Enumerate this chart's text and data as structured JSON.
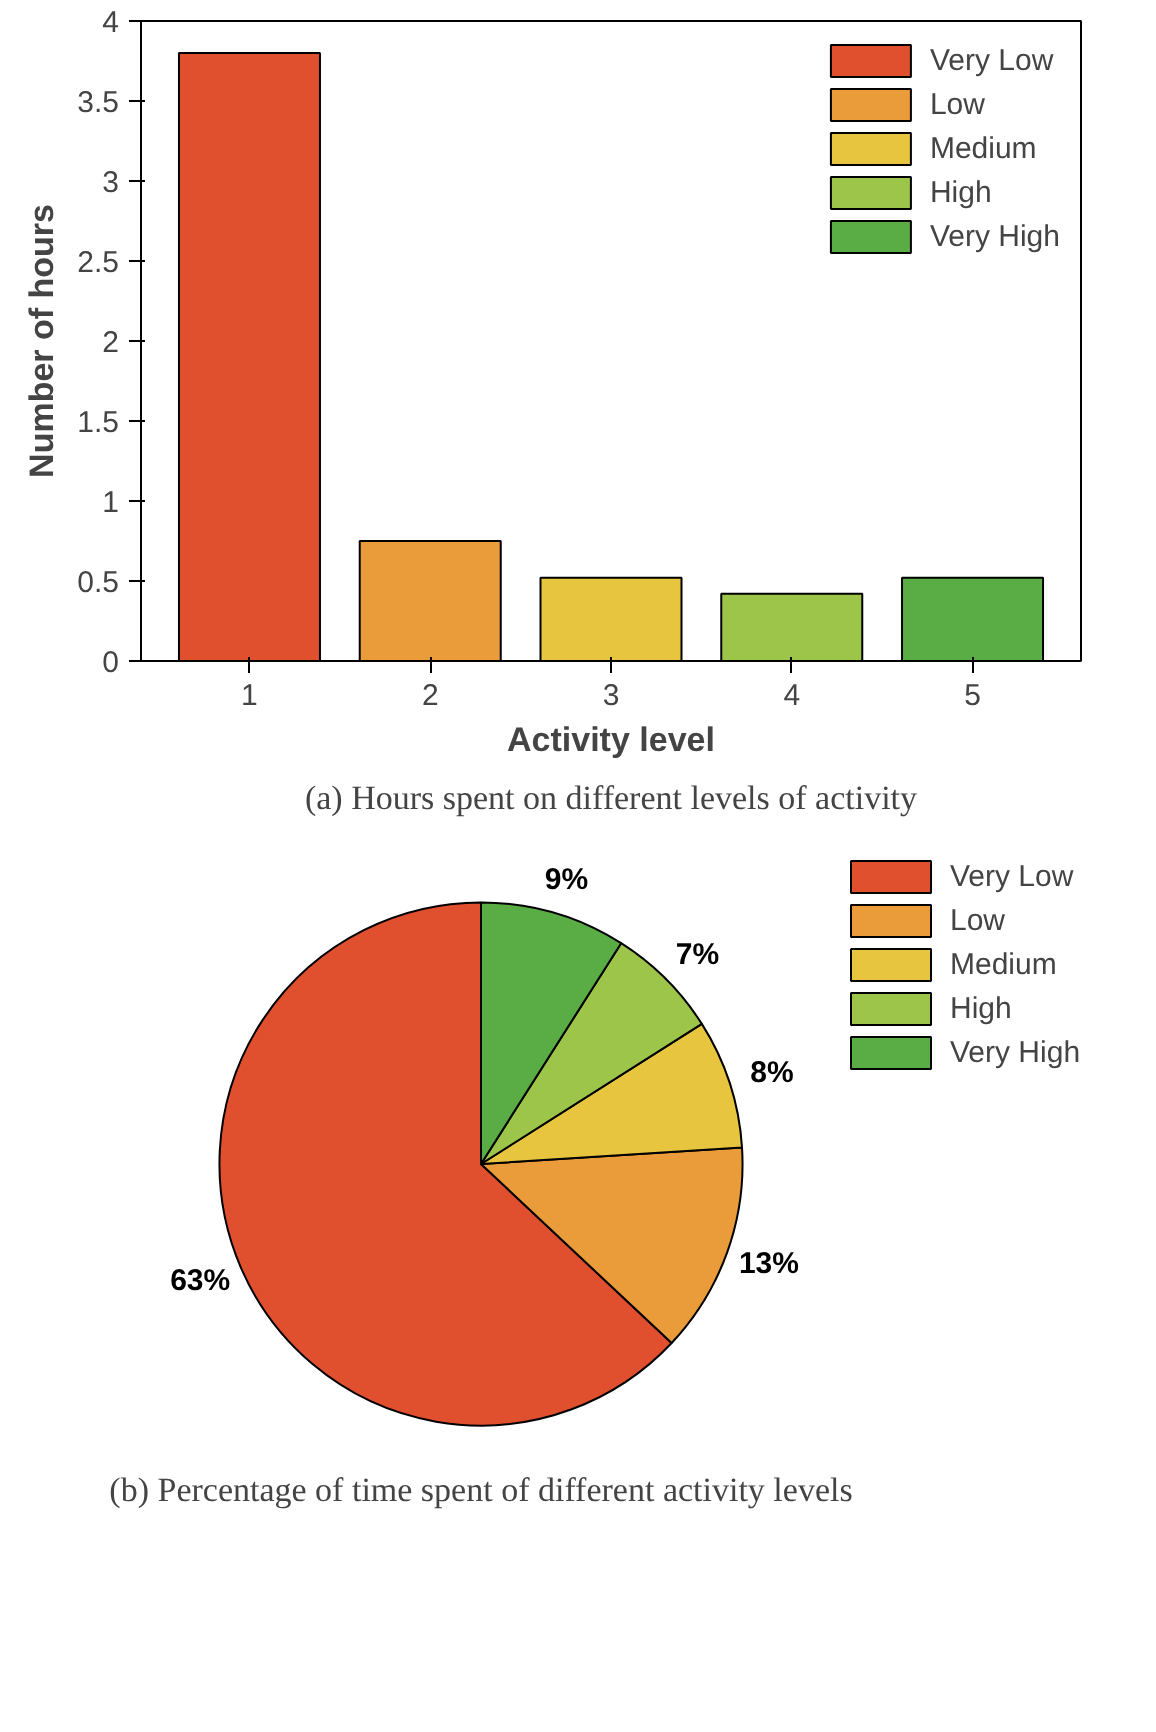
{
  "chart_data": [
    {
      "type": "bar",
      "xlabel": "Activity level",
      "ylabel": "Number of hours",
      "categories": [
        "1",
        "2",
        "3",
        "4",
        "5"
      ],
      "series": [
        {
          "name": "Very Low",
          "color": "#e0502e",
          "values": [
            3.8,
            null,
            null,
            null,
            null
          ]
        },
        {
          "name": "Low",
          "color": "#eb9c3a",
          "values": [
            null,
            0.75,
            null,
            null,
            null
          ]
        },
        {
          "name": "Medium",
          "color": "#e8c53e",
          "values": [
            null,
            null,
            0.52,
            null,
            null
          ]
        },
        {
          "name": "High",
          "color": "#9dc54a",
          "values": [
            null,
            null,
            null,
            0.42,
            null
          ]
        },
        {
          "name": "Very High",
          "color": "#5aad45",
          "values": [
            null,
            null,
            null,
            null,
            0.52
          ]
        }
      ],
      "ylim": [
        0,
        4
      ],
      "yticks": [
        0,
        0.5,
        1,
        1.5,
        2,
        2.5,
        3,
        3.5,
        4
      ],
      "legend": "top right",
      "annotations": [
        "(a) Hours spent on different levels of activity"
      ]
    },
    {
      "type": "pie",
      "categories": [
        "Very Low",
        "Low",
        "Medium",
        "High",
        "Very High"
      ],
      "values": [
        63,
        13,
        8,
        7,
        9
      ],
      "colors": [
        "#e0502e",
        "#eb9c3a",
        "#e8c53e",
        "#9dc54a",
        "#5aad45"
      ],
      "value_labels": [
        "63%",
        "13%",
        "8%",
        "7%",
        "9%"
      ],
      "legend": "right",
      "annotations": [
        "(b) Percentage of time spent of different activity levels"
      ]
    }
  ]
}
